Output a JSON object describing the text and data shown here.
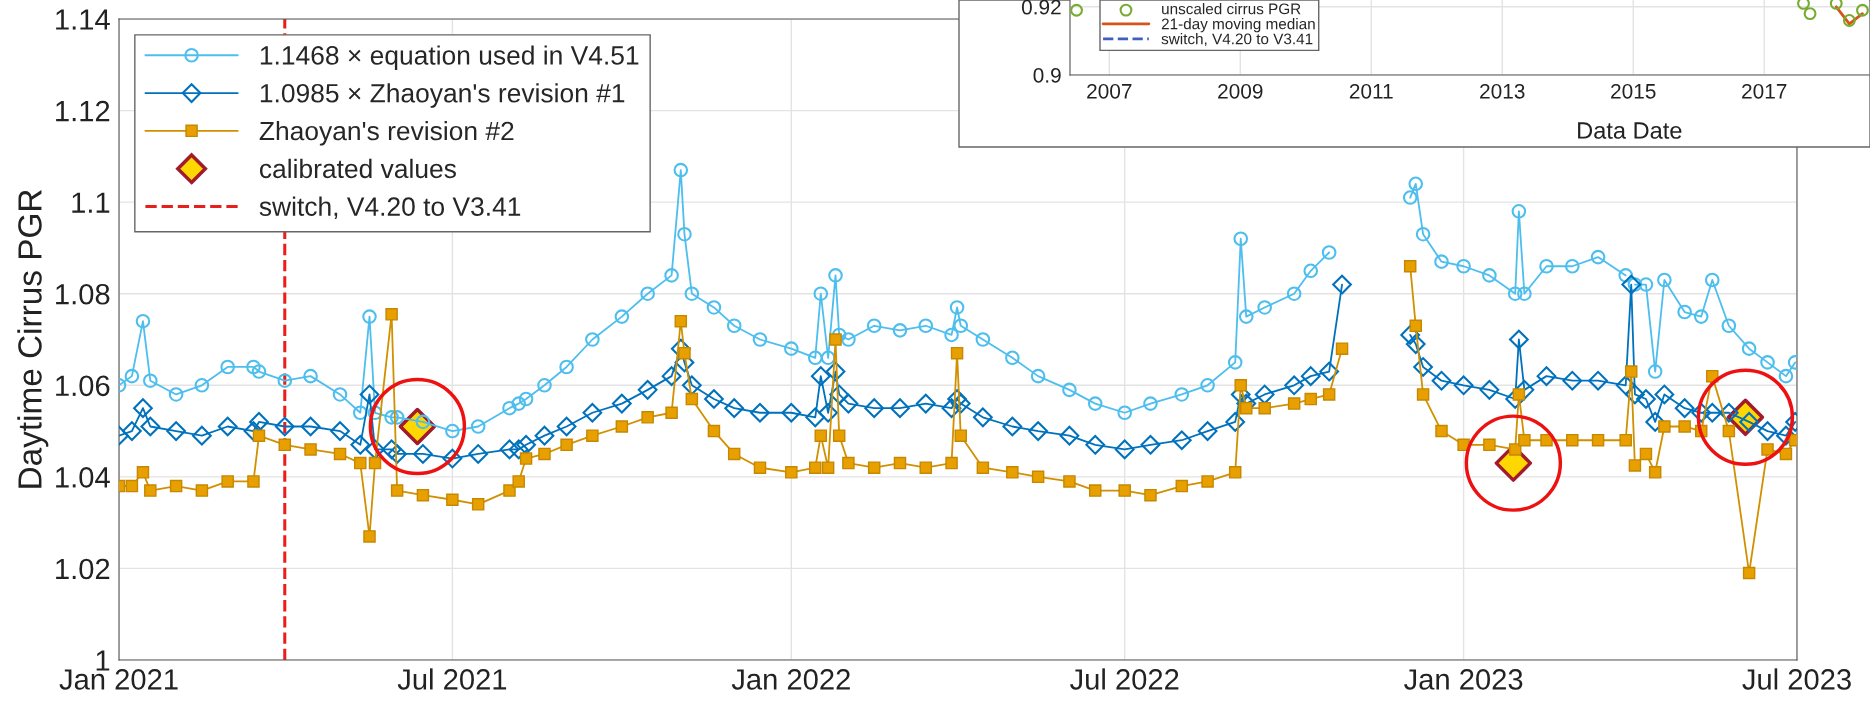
{
  "chart_data": [
    {
      "type": "line",
      "ylabel": "Daytime Cirrus PGR",
      "x": [
        "2021-01-01",
        "2021-01-08",
        "2021-01-14",
        "2021-01-18",
        "2021-02-01",
        "2021-02-15",
        "2021-03-01",
        "2021-03-15",
        "2021-03-18",
        "2021-04-01",
        "2021-04-15",
        "2021-05-01",
        "2021-05-12",
        "2021-05-17",
        "2021-05-20",
        "2021-05-29",
        "2021-06-01",
        "2021-06-15",
        "2021-07-01",
        "2021-07-15",
        "2021-08-01",
        "2021-08-06",
        "2021-08-10",
        "2021-08-20",
        "2021-09-01",
        "2021-09-15",
        "2021-10-01",
        "2021-10-15",
        "2021-10-28",
        "2021-11-02",
        "2021-11-04",
        "2021-11-08",
        "2021-11-20",
        "2021-12-01",
        "2021-12-15",
        "2022-01-01",
        "2022-01-14",
        "2022-01-17",
        "2022-01-21",
        "2022-01-25",
        "2022-01-27",
        "2022-02-01",
        "2022-02-15",
        "2022-03-01",
        "2022-03-15",
        "2022-03-29",
        "2022-04-01",
        "2022-04-03",
        "2022-04-15",
        "2022-05-01",
        "2022-05-15",
        "2022-06-01",
        "2022-06-15",
        "2022-07-01",
        "2022-07-15",
        "2022-08-01",
        "2022-08-15",
        "2022-08-30",
        "2022-09-02",
        "2022-09-05",
        "2022-09-15",
        "2022-10-01",
        "2022-10-10",
        "2022-10-20",
        "2022-10-27",
        "2022-11-15",
        "2022-12-03",
        "2022-12-06",
        "2022-12-10",
        "2022-12-20",
        "2023-01-01",
        "2023-01-15",
        "2023-01-29",
        "2023-01-31",
        "2023-02-03",
        "2023-02-15",
        "2023-03-01",
        "2023-03-15",
        "2023-03-30",
        "2023-04-02",
        "2023-04-04",
        "2023-04-10",
        "2023-04-15",
        "2023-04-20",
        "2023-05-01",
        "2023-05-10",
        "2023-05-16",
        "2023-05-25",
        "2023-06-05",
        "2023-06-15",
        "2023-06-25",
        "2023-06-30"
      ],
      "series": [
        {
          "name": "1.1468 × equation used in V4.51",
          "color": "#4dbeee",
          "marker": "circle",
          "values": [
            1.06,
            1.062,
            1.074,
            1.061,
            1.058,
            1.06,
            1.064,
            1.064,
            1.063,
            1.061,
            1.062,
            1.058,
            1.054,
            1.075,
            1.054,
            1.053,
            1.053,
            1.052,
            1.05,
            1.051,
            1.055,
            1.056,
            1.057,
            1.06,
            1.064,
            1.07,
            1.075,
            1.08,
            1.084,
            1.107,
            1.093,
            1.08,
            1.077,
            1.073,
            1.07,
            1.068,
            1.066,
            1.08,
            1.066,
            1.084,
            1.071,
            1.07,
            1.073,
            1.072,
            1.073,
            1.071,
            1.077,
            1.073,
            1.07,
            1.066,
            1.062,
            1.059,
            1.056,
            1.054,
            1.056,
            1.058,
            1.06,
            1.065,
            1.092,
            1.075,
            1.077,
            1.08,
            1.085,
            1.089,
            null,
            null,
            1.101,
            1.104,
            1.093,
            1.087,
            1.086,
            1.084,
            1.08,
            1.098,
            1.08,
            1.086,
            1.086,
            1.088,
            1.084,
            null,
            1.082,
            1.082,
            1.063,
            1.083,
            1.076,
            1.075,
            1.083,
            1.073,
            1.068,
            1.065,
            1.062,
            1.065
          ]
        },
        {
          "name": "1.0985 × Zhaoyan's revision #1",
          "color": "#0072bd",
          "marker": "diamond",
          "values": [
            1.049,
            1.05,
            1.055,
            1.051,
            1.05,
            1.049,
            1.051,
            1.05,
            1.052,
            1.051,
            1.051,
            1.05,
            1.047,
            1.058,
            1.046,
            1.046,
            1.045,
            1.045,
            1.044,
            1.045,
            1.046,
            1.046,
            1.047,
            1.049,
            1.051,
            1.054,
            1.056,
            1.059,
            1.062,
            1.068,
            1.065,
            1.06,
            1.057,
            1.055,
            1.054,
            1.054,
            1.053,
            1.062,
            1.054,
            1.063,
            1.058,
            1.056,
            1.055,
            1.055,
            1.056,
            1.055,
            1.057,
            1.056,
            1.053,
            1.051,
            1.05,
            1.049,
            1.047,
            1.046,
            1.047,
            1.048,
            1.05,
            1.052,
            1.058,
            1.056,
            1.058,
            1.06,
            1.062,
            1.063,
            1.082,
            null,
            1.071,
            1.069,
            1.064,
            1.061,
            1.06,
            1.059,
            1.057,
            1.07,
            1.059,
            1.062,
            1.061,
            1.061,
            1.06,
            1.082,
            1.058,
            1.057,
            1.052,
            1.058,
            1.055,
            1.054,
            1.054,
            1.054,
            1.052,
            1.05,
            1.049,
            1.052
          ]
        },
        {
          "name": "Zhaoyan's revision #2",
          "color": "#e8a000",
          "marker": "square",
          "values": [
            1.038,
            1.038,
            1.041,
            1.037,
            1.038,
            1.037,
            1.039,
            1.039,
            1.049,
            1.047,
            1.046,
            1.045,
            1.043,
            1.027,
            1.043,
            1.0755,
            1.037,
            1.036,
            1.035,
            1.034,
            1.037,
            1.039,
            1.044,
            1.045,
            1.047,
            1.049,
            1.051,
            1.053,
            1.054,
            1.074,
            1.067,
            1.057,
            1.05,
            1.045,
            1.042,
            1.041,
            1.042,
            1.049,
            1.042,
            1.07,
            1.049,
            1.043,
            1.042,
            1.043,
            1.042,
            1.043,
            1.067,
            1.049,
            1.042,
            1.041,
            1.04,
            1.039,
            1.037,
            1.037,
            1.036,
            1.038,
            1.039,
            1.041,
            1.06,
            1.055,
            1.055,
            1.056,
            1.057,
            1.058,
            1.068,
            null,
            1.086,
            1.073,
            1.058,
            1.05,
            1.047,
            1.047,
            1.046,
            1.058,
            1.048,
            1.048,
            1.048,
            1.048,
            1.048,
            1.063,
            1.0425,
            1.045,
            1.041,
            1.051,
            1.051,
            1.05,
            1.062,
            1.05,
            1.019,
            1.046,
            1.045,
            1.048
          ]
        },
        {
          "name": "calibrated values",
          "type": "scatter",
          "color": "#ffd700",
          "marker": "diamond",
          "x": [
            "2021-06-12",
            "2023-01-28",
            "2023-06-03"
          ],
          "values": [
            1.051,
            1.043,
            1.053
          ]
        }
      ],
      "ref_lines": [
        {
          "axis": "x",
          "value": "2021-04-01",
          "label": "switch, V4.20 to V3.41",
          "color": "#e8201c",
          "line_style": "dashed"
        }
      ],
      "xlim": [
        "2021-01-01",
        "2023-07-01"
      ],
      "xticks": [
        {
          "value": "2021-01-01",
          "label": "Jan 2021"
        },
        {
          "value": "2021-07-01",
          "label": "Jul 2021"
        },
        {
          "value": "2022-01-01",
          "label": "Jan 2022"
        },
        {
          "value": "2022-07-01",
          "label": "Jul 2022"
        },
        {
          "value": "2023-01-01",
          "label": "Jan 2023"
        },
        {
          "value": "2023-07-01",
          "label": "Jul 2023"
        }
      ],
      "ylim": [
        1,
        1.14
      ],
      "yticks": [
        1,
        1.02,
        1.04,
        1.06,
        1.08,
        1.1,
        1.12,
        1.14
      ],
      "grid": true,
      "legend": "top left"
    },
    {
      "type": "line",
      "xlabel": "Data Date",
      "series": [
        {
          "name": "unscaled cirrus PGR",
          "type": "scatter",
          "color": "#77ac30",
          "marker": "circle",
          "x": [
            2006.5,
            2017.6,
            2017.7,
            2018.1,
            2018.3,
            2018.5
          ],
          "values": [
            0.919,
            0.921,
            0.918,
            0.921,
            0.916,
            0.919
          ]
        },
        {
          "name": "21-day moving median",
          "color": "#d95319",
          "x": [
            2018.1,
            2018.3,
            2018.5
          ],
          "values": [
            0.92,
            0.915,
            0.918
          ]
        },
        {
          "name": "switch, V4.20 to V3.41",
          "color": "#4060c0",
          "line_style": "dashed"
        }
      ],
      "xlim": [
        2006.4,
        2018.6
      ],
      "xticks": [
        2007,
        2009,
        2011,
        2013,
        2015,
        2017
      ],
      "ylim": [
        0.9,
        0.922
      ],
      "yticks": [
        0.9,
        0.92
      ],
      "grid": true,
      "legend": "top left"
    }
  ]
}
